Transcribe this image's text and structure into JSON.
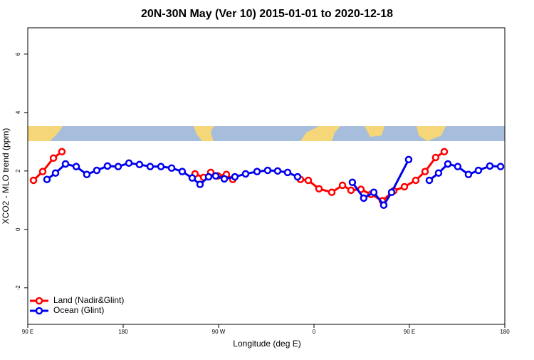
{
  "chart_data": {
    "type": "line",
    "title": "20N-30N May (Ver 10)   2015-01-01 to 2020-12-18",
    "x_label": "Longitude (deg E)",
    "y_label": "XCO2 - MLO trend (ppm)",
    "xlim": [
      90,
      540
    ],
    "ylim": [
      -3.25,
      6.9
    ],
    "xticks": [
      {
        "value": 90,
        "label": "90 E"
      },
      180,
      {
        "value": 270,
        "label": "90 W"
      },
      {
        "value": 360,
        "label": "0"
      },
      {
        "value": 450,
        "label": "90 E"
      },
      {
        "value": 540,
        "label": "180"
      }
    ],
    "yticks": [
      -2,
      0,
      2,
      4,
      6
    ],
    "legend": "bottom-left",
    "series": [
      {
        "name": "Land (Nadir&Glint)",
        "color": "#ff0000",
        "x": [
          95.4,
          104.1,
          114.2,
          122.2,
          null,
          247.8,
          255.9,
          262.6,
          269.3,
          277.4,
          283.4,
          null,
          347.2,
          354.6,
          364.7,
          376.8,
          386.9,
          394.9,
          404.3,
          413.7,
          424.5,
          435.2,
          445.3,
          456.0,
          464.8,
          474.8,
          482.9
        ],
        "values": [
          1.68,
          1.98,
          2.44,
          2.66,
          null,
          1.9,
          1.78,
          1.95,
          1.83,
          1.88,
          1.71,
          null,
          1.71,
          1.68,
          1.39,
          1.27,
          1.51,
          1.34,
          1.37,
          1.2,
          0.98,
          1.32,
          1.46,
          1.68,
          1.98,
          2.46,
          2.66
        ]
      },
      {
        "name": "Ocean (Glint)",
        "color": "#0000ee",
        "x": [
          108.1,
          116.2,
          125.6,
          135.7,
          145.7,
          155.1,
          165.2,
          175.3,
          185.4,
          195.4,
          205.5,
          215.6,
          225.7,
          235.7,
          245.1,
          252.5,
          260.6,
          267.3,
          275.4,
          285.4,
          295.5,
          306.3,
          316.3,
          325.7,
          335.1,
          344.5,
          null,
          396.2,
          406.9,
          416.4,
          425.8,
          433.2,
          449.3,
          null,
          468.8,
          477.5,
          486.3,
          495.6,
          505.7,
          515.1,
          525.9,
          536.0
        ],
        "values": [
          1.71,
          1.93,
          2.24,
          2.15,
          1.88,
          2.02,
          2.17,
          2.15,
          2.27,
          2.22,
          2.15,
          2.15,
          2.1,
          1.98,
          1.76,
          1.54,
          1.8,
          1.83,
          1.73,
          1.8,
          1.9,
          1.98,
          2.02,
          2.0,
          1.95,
          1.8,
          null,
          1.61,
          1.07,
          1.27,
          0.83,
          1.27,
          2.39,
          null,
          1.68,
          1.93,
          2.24,
          2.15,
          1.88,
          2.02,
          2.17,
          2.15
        ]
      }
    ]
  }
}
